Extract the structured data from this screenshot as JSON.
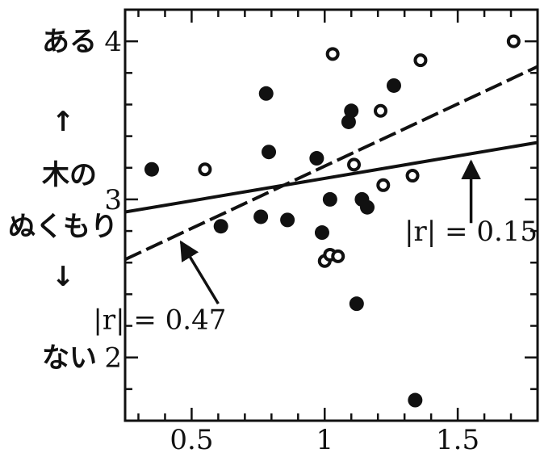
{
  "chart_data": {
    "type": "scatter",
    "title": "",
    "xlabel": "",
    "ylabel_parts": [
      "木の",
      "ぬくもり"
    ],
    "ylabel_top": "ある",
    "ylabel_bottom": "ない",
    "arrow_up": "↑",
    "arrow_down": "↓",
    "xlim": [
      0.25,
      1.8
    ],
    "ylim": [
      1.6,
      4.2
    ],
    "x_ticks": [
      0.5,
      1,
      1.5
    ],
    "x_tick_labels": [
      "0.5",
      "1",
      "1.5"
    ],
    "y_ticks": [
      2,
      3,
      4
    ],
    "y_tick_labels": [
      "2",
      "3",
      "4"
    ],
    "grid": false,
    "series": [
      {
        "marker": "filled-circle",
        "points": [
          [
            0.35,
            3.19
          ],
          [
            0.61,
            2.83
          ],
          [
            0.76,
            2.89
          ],
          [
            0.78,
            3.67
          ],
          [
            0.79,
            3.3
          ],
          [
            0.86,
            2.87
          ],
          [
            0.97,
            3.26
          ],
          [
            0.99,
            2.79
          ],
          [
            1.02,
            3.0
          ],
          [
            1.09,
            3.49
          ],
          [
            1.1,
            3.56
          ],
          [
            1.12,
            2.34
          ],
          [
            1.14,
            3.0
          ],
          [
            1.16,
            2.95
          ],
          [
            1.26,
            3.72
          ],
          [
            1.34,
            1.73
          ]
        ]
      },
      {
        "marker": "open-circle",
        "points": [
          [
            0.55,
            3.19
          ],
          [
            1.0,
            2.61
          ],
          [
            1.02,
            2.65
          ],
          [
            1.03,
            3.92
          ],
          [
            1.05,
            2.64
          ],
          [
            1.11,
            3.22
          ],
          [
            1.21,
            3.56
          ],
          [
            1.22,
            3.09
          ],
          [
            1.33,
            3.15
          ],
          [
            1.36,
            3.88
          ],
          [
            1.71,
            4.0
          ]
        ]
      }
    ],
    "lines": [
      {
        "style": "solid",
        "x": [
          0.25,
          1.8
        ],
        "y": [
          2.92,
          3.36
        ],
        "label": "|r| = 0.15",
        "label_at": [
          1.55,
          2.74
        ],
        "arrow_from": [
          1.55,
          2.85
        ],
        "arrow_to": [
          1.55,
          3.24
        ]
      },
      {
        "style": "dashed",
        "x": [
          0.25,
          1.8
        ],
        "y": [
          2.62,
          3.84
        ],
        "label": "|r| = 0.47",
        "label_at": [
          0.38,
          2.18
        ],
        "arrow_from": [
          0.6,
          2.34
        ],
        "arrow_to": [
          0.46,
          2.73
        ]
      }
    ]
  }
}
